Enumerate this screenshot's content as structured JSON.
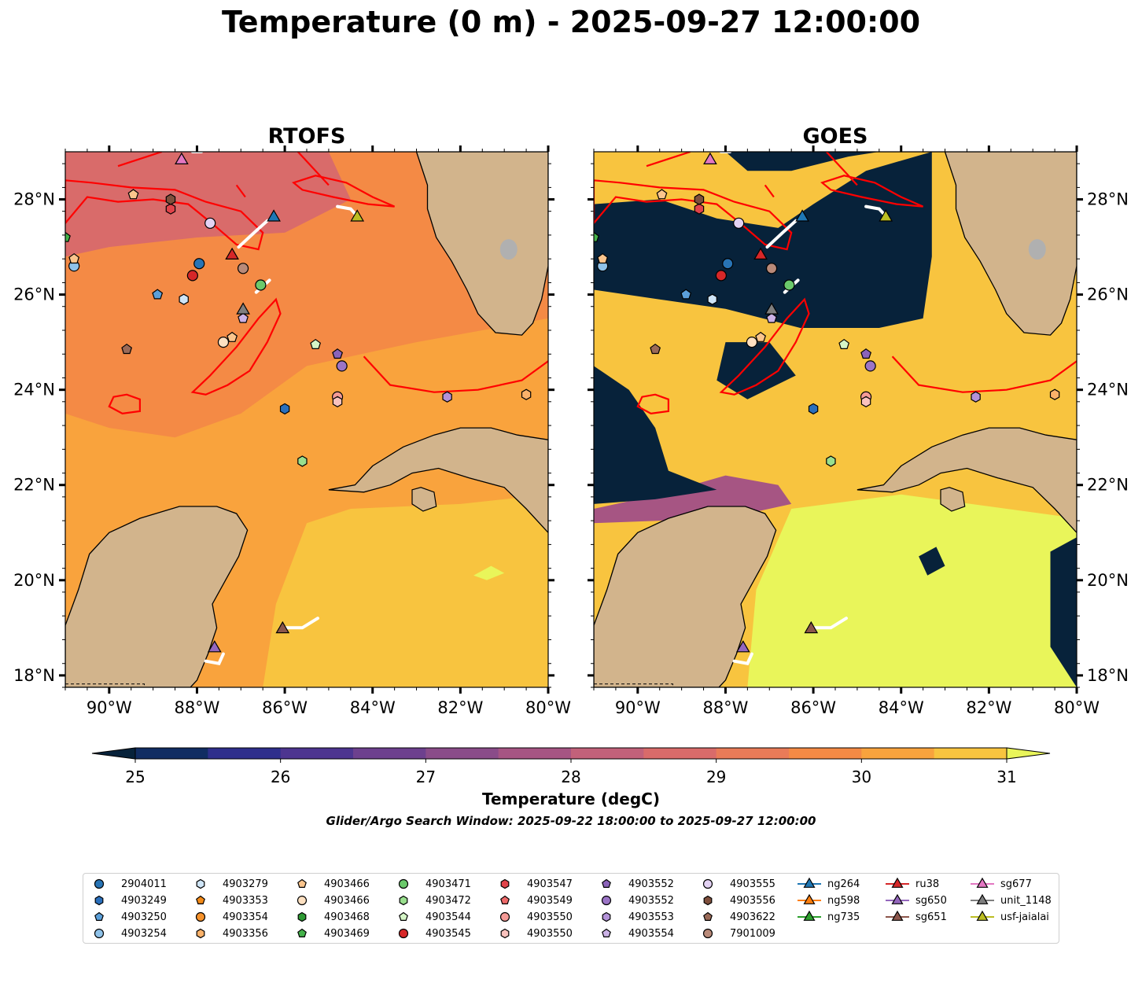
{
  "title": "Temperature (0 m) - 2025-09-27 12:00:00",
  "panels": [
    {
      "title": "RTOFS"
    },
    {
      "title": "GOES"
    }
  ],
  "axes": {
    "lat_ticks": [
      "18°N",
      "20°N",
      "22°N",
      "24°N",
      "26°N",
      "28°N"
    ],
    "lon_ticks": [
      "90°W",
      "88°W",
      "86°W",
      "84°W",
      "82°W",
      "80°W"
    ]
  },
  "colorbar": {
    "label": "Temperature (degC)",
    "ticks": [
      "25",
      "26",
      "27",
      "28",
      "29",
      "30",
      "31"
    ],
    "range": [
      25,
      31
    ],
    "step": 0.5,
    "extend": "both",
    "colormap": [
      "#07223a",
      "#112d62",
      "#2f2f8c",
      "#4d3590",
      "#6d408e",
      "#8a4c89",
      "#a65583",
      "#c2617a",
      "#d96b6a",
      "#e97b58",
      "#f48a45",
      "#f9a33d",
      "#f8c43f",
      "#e9f55a"
    ]
  },
  "window_note": "Glider/Argo Search Window: 2025-09-22 18:00:00 to 2025-09-27 12:00:00",
  "legend": {
    "columns": [
      [
        {
          "label": "2904011",
          "marker": "circle",
          "color": "#2874b5"
        },
        {
          "label": "4903249",
          "marker": "hexagon",
          "color": "#2a6fbc"
        },
        {
          "label": "4903250",
          "marker": "pentagon",
          "color": "#5b9fd9"
        },
        {
          "label": "4903254",
          "marker": "circle",
          "color": "#8fc2e9"
        }
      ],
      [
        {
          "label": "4903279",
          "marker": "hexagon",
          "color": "#cfe5f7"
        },
        {
          "label": "4903353",
          "marker": "pentagon",
          "color": "#f28a17"
        },
        {
          "label": "4903354",
          "marker": "circle",
          "color": "#f6922b"
        },
        {
          "label": "4903356",
          "marker": "hexagon",
          "color": "#fbb26a"
        }
      ],
      [
        {
          "label": "4903466",
          "marker": "pentagon",
          "color": "#fbc58d"
        },
        {
          "label": "4903466",
          "marker": "circle",
          "color": "#fde0c1"
        },
        {
          "label": "4903468",
          "marker": "hexagon",
          "color": "#2e9a34"
        },
        {
          "label": "4903469",
          "marker": "pentagon",
          "color": "#44b24a"
        }
      ],
      [
        {
          "label": "4903471",
          "marker": "circle",
          "color": "#6bc96b"
        },
        {
          "label": "4903472",
          "marker": "hexagon",
          "color": "#99df8e"
        },
        {
          "label": "4903544",
          "marker": "pentagon",
          "color": "#d5f5c6"
        },
        {
          "label": "4903545",
          "marker": "circle",
          "color": "#d62728"
        }
      ],
      [
        {
          "label": "4903547",
          "marker": "hexagon",
          "color": "#e0434a"
        },
        {
          "label": "4903549",
          "marker": "pentagon",
          "color": "#ee6a6a"
        },
        {
          "label": "4903550",
          "marker": "circle",
          "color": "#f49a96"
        },
        {
          "label": "4903550",
          "marker": "hexagon",
          "color": "#f9c2bd"
        }
      ],
      [
        {
          "label": "4903552",
          "marker": "pentagon",
          "color": "#8b63b9"
        },
        {
          "label": "4903552",
          "marker": "circle",
          "color": "#9b74c6"
        },
        {
          "label": "4903553",
          "marker": "hexagon",
          "color": "#b392d8"
        },
        {
          "label": "4903554",
          "marker": "pentagon",
          "color": "#cbb2e6"
        }
      ],
      [
        {
          "label": "4903555",
          "marker": "circle",
          "color": "#e3d2f3"
        },
        {
          "label": "4903556",
          "marker": "hexagon",
          "color": "#7f4f3c"
        },
        {
          "label": "4903622",
          "marker": "pentagon",
          "color": "#9a6a58"
        },
        {
          "label": "7901009",
          "marker": "circle",
          "color": "#b98a79"
        }
      ],
      [
        {
          "label": "ng264",
          "marker": "triangle-line",
          "color": "#1f77b4"
        },
        {
          "label": "ng598",
          "marker": "triangle-line",
          "color": "#ff7f0e"
        },
        {
          "label": "ng735",
          "marker": "triangle-line",
          "color": "#2ca02c"
        }
      ],
      [
        {
          "label": "ru38",
          "marker": "triangle-line",
          "color": "#d62728"
        },
        {
          "label": "sg650",
          "marker": "triangle-line",
          "color": "#9467bd"
        },
        {
          "label": "sg651",
          "marker": "triangle-line",
          "color": "#8c564b"
        }
      ],
      [
        {
          "label": "sg677",
          "marker": "triangle-line",
          "color": "#e377c2"
        },
        {
          "label": "unit_1148",
          "marker": "triangle-line",
          "color": "#7f7f7f"
        },
        {
          "label": "usf-jaialai",
          "marker": "triangle-line",
          "color": "#bcbd22"
        }
      ]
    ]
  },
  "map_colors": {
    "land": "#d2b48c",
    "lakes": "#a6c8e8",
    "contour": "#ff0000",
    "glider_track": "#ffffff"
  },
  "floats": [
    {
      "id": "2904011",
      "marker": "circle",
      "color": "#2874b5",
      "lon": -87.95,
      "lat": 26.65
    },
    {
      "id": "4903249",
      "marker": "hexagon",
      "color": "#2a6fbc",
      "lon": -86.0,
      "lat": 23.6
    },
    {
      "id": "4903250",
      "marker": "pentagon",
      "color": "#5b9fd9",
      "lon": -88.9,
      "lat": 26.0
    },
    {
      "id": "4903254",
      "marker": "circle",
      "color": "#8fc2e9",
      "lon": -90.8,
      "lat": 26.6
    },
    {
      "id": "4903279",
      "marker": "hexagon",
      "color": "#cfe5f7",
      "lon": -88.3,
      "lat": 25.9
    },
    {
      "id": "4903356",
      "marker": "hexagon",
      "color": "#fbb26a",
      "lon": -80.5,
      "lat": 23.9
    },
    {
      "id": "4903466",
      "marker": "pentagon",
      "color": "#fbc58d",
      "lon": -89.45,
      "lat": 28.1
    },
    {
      "id": "4903466",
      "marker": "pentagon",
      "color": "#fbc58d",
      "lon": -90.8,
      "lat": 26.75
    },
    {
      "id": "4903466",
      "marker": "pentagon",
      "color": "#fbc58d",
      "lon": -87.2,
      "lat": 25.1
    },
    {
      "id": "4903466",
      "marker": "circle",
      "color": "#fde0c1",
      "lon": -87.4,
      "lat": 25.0
    },
    {
      "id": "4903469",
      "marker": "pentagon",
      "color": "#44b24a",
      "lon": -91.0,
      "lat": 27.2
    },
    {
      "id": "4903471",
      "marker": "circle",
      "color": "#6bc96b",
      "lon": -86.55,
      "lat": 26.2
    },
    {
      "id": "4903472",
      "marker": "hexagon",
      "color": "#99df8e",
      "lon": -85.6,
      "lat": 22.5
    },
    {
      "id": "4903544",
      "marker": "pentagon",
      "color": "#d5f5c6",
      "lon": -85.3,
      "lat": 24.95
    },
    {
      "id": "4903545",
      "marker": "circle",
      "color": "#d62728",
      "lon": -88.1,
      "lat": 26.4
    },
    {
      "id": "4903547",
      "marker": "hexagon",
      "color": "#e0434a",
      "lon": -88.6,
      "lat": 27.8
    },
    {
      "id": "4903550",
      "marker": "circle",
      "color": "#f49a96",
      "lon": -84.8,
      "lat": 23.85
    },
    {
      "id": "4903550",
      "marker": "hexagon",
      "color": "#f9c2bd",
      "lon": -84.8,
      "lat": 23.75
    },
    {
      "id": "4903552",
      "marker": "pentagon",
      "color": "#8b63b9",
      "lon": -84.8,
      "lat": 24.75
    },
    {
      "id": "4903552",
      "marker": "circle",
      "color": "#9b74c6",
      "lon": -84.7,
      "lat": 24.5
    },
    {
      "id": "4903553",
      "marker": "hexagon",
      "color": "#b392d8",
      "lon": -82.3,
      "lat": 23.85
    },
    {
      "id": "4903554",
      "marker": "pentagon",
      "color": "#cbb2e6",
      "lon": -86.95,
      "lat": 25.5
    },
    {
      "id": "4903555",
      "marker": "circle",
      "color": "#e3d2f3",
      "lon": -87.7,
      "lat": 27.5
    },
    {
      "id": "4903556",
      "marker": "hexagon",
      "color": "#7f4f3c",
      "lon": -88.6,
      "lat": 28.0
    },
    {
      "id": "4903622",
      "marker": "pentagon",
      "color": "#9a6a58",
      "lon": -89.6,
      "lat": 24.85
    },
    {
      "id": "7901009",
      "marker": "circle",
      "color": "#b98a79",
      "lon": -86.95,
      "lat": 26.55
    }
  ],
  "gliders": [
    {
      "id": "ng264",
      "color": "#1f77b4",
      "lon": -86.25,
      "lat": 27.65
    },
    {
      "id": "ru38",
      "color": "#d62728",
      "lon": -87.2,
      "lat": 26.85
    },
    {
      "id": "sg650",
      "color": "#9467bd",
      "lon": -87.6,
      "lat": 18.6
    },
    {
      "id": "sg651",
      "color": "#8c564b",
      "lon": -86.05,
      "lat": 19.0
    },
    {
      "id": "sg677",
      "color": "#e377c2",
      "lon": -88.35,
      "lat": 28.85
    },
    {
      "id": "unit_1148",
      "color": "#7f7f7f",
      "lon": -86.95,
      "lat": 25.7
    },
    {
      "id": "usf-jaialai",
      "color": "#bcbd22",
      "lon": -84.35,
      "lat": 27.65
    }
  ]
}
